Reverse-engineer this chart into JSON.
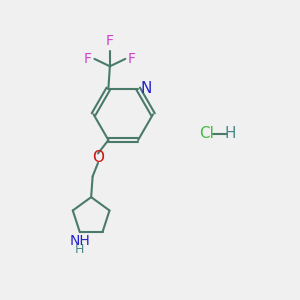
{
  "background_color": "#f0f0f0",
  "bond_color": "#4a7a6a",
  "N_color": "#2222cc",
  "O_color": "#cc1111",
  "F_color": "#cc44cc",
  "Cl_color": "#44bb44",
  "H_color": "#4a8888",
  "line_width": 1.5,
  "font_size": 10,
  "figsize": [
    3.0,
    3.0
  ],
  "dpi": 100,
  "xlim": [
    0,
    10
  ],
  "ylim": [
    0,
    10
  ]
}
